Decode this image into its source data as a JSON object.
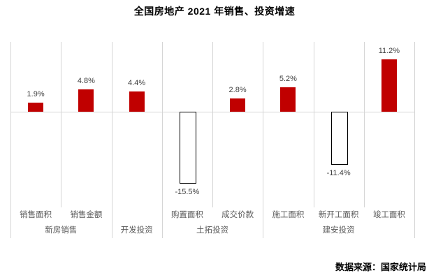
{
  "window": {
    "background_color": "#FFFFFF"
  },
  "chart": {
    "title": "全国房地产 2021 年销售、投资增速",
    "source": "数据来源：国家统计局"
  },
  "chart_data": {
    "type": "bar",
    "title": "全国房地产 2021 年销售、投资增速",
    "categories": [
      "销售面积",
      "销售金额",
      "",
      "购置面积",
      "成交价款",
      "施工面积",
      "新开工面积",
      "竣工面积"
    ],
    "values": [
      1.9,
      4.8,
      4.4,
      -15.5,
      2.8,
      5.2,
      -11.4,
      11.2
    ],
    "value_labels": [
      "1.9%",
      "4.8%",
      "4.4%",
      "-15.5%",
      "2.8%",
      "5.2%",
      "-11.4%",
      "11.2%"
    ],
    "groups": [
      {
        "label": "新房销售",
        "start": 0,
        "end": 2
      },
      {
        "label": "开发投资",
        "start": 2,
        "end": 3
      },
      {
        "label": "土拓投资",
        "start": 3,
        "end": 5
      },
      {
        "label": "建安投资",
        "start": 5,
        "end": 8
      }
    ],
    "unit": "%",
    "ylim": [
      -20,
      15
    ],
    "grid": "vertical-category-separators",
    "legend": "none",
    "positive_bar_color": "#C00000",
    "negative_bar_style": "hollow-white-black-outline",
    "line_color": "#D5D5D5",
    "value_label_color": "#404040",
    "axis_label_color": "#595959",
    "source": "数据来源：国家统计局"
  }
}
